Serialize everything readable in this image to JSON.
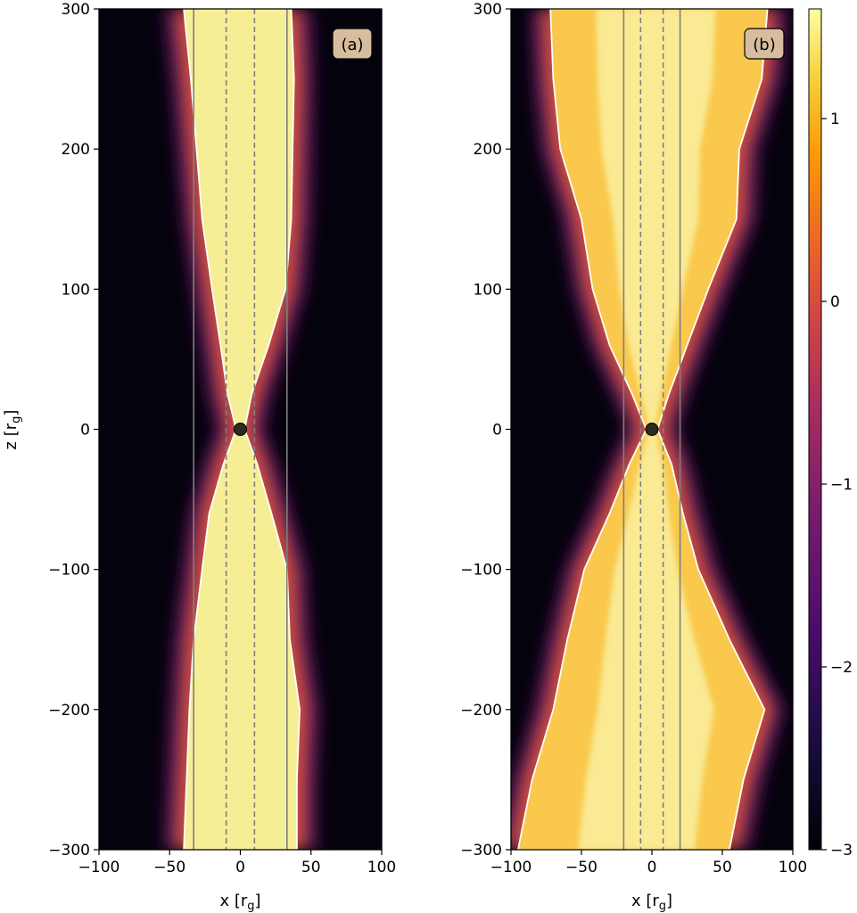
{
  "chart_data": [
    {
      "type": "heatmap",
      "panel_label": "(a)",
      "xlabel": "x [r_g]",
      "ylabel": "z [r_g]",
      "xlim": [
        -100,
        100
      ],
      "ylim": [
        -300,
        300
      ],
      "x_ticks": [
        -100,
        -50,
        0,
        50,
        100
      ],
      "y_ticks": [
        -300,
        -200,
        -100,
        0,
        100,
        200,
        300
      ],
      "x_tick_labels": [
        "−100",
        "−50",
        "0",
        "50",
        "100"
      ],
      "y_tick_labels": [
        "−300",
        "−200",
        "−100",
        "0",
        "100",
        "200",
        "300"
      ],
      "black_hole": {
        "x": 0,
        "z": 0
      },
      "solid_vertical_lines_x": [
        -33,
        33
      ],
      "dashed_vertical_lines_x": [
        -10,
        10
      ],
      "contour_boundary": [
        {
          "z": 300,
          "x_left": -40,
          "x_right": 36
        },
        {
          "z": 250,
          "x_left": -35,
          "x_right": 38
        },
        {
          "z": 200,
          "x_left": -31,
          "x_right": 37
        },
        {
          "z": 150,
          "x_left": -27,
          "x_right": 36
        },
        {
          "z": 100,
          "x_left": -20,
          "x_right": 32
        },
        {
          "z": 60,
          "x_left": -14,
          "x_right": 20
        },
        {
          "z": 25,
          "x_left": -9,
          "x_right": 8
        },
        {
          "z": 0,
          "x_left": -3,
          "x_right": 3
        },
        {
          "z": -25,
          "x_left": -12,
          "x_right": 12
        },
        {
          "z": -60,
          "x_left": -22,
          "x_right": 22
        },
        {
          "z": -100,
          "x_left": -27,
          "x_right": 33
        },
        {
          "z": -150,
          "x_left": -33,
          "x_right": 35
        },
        {
          "z": -200,
          "x_left": -36,
          "x_right": 42
        },
        {
          "z": -250,
          "x_left": -38,
          "x_right": 40
        },
        {
          "z": -300,
          "x_left": -40,
          "x_right": 40
        }
      ]
    },
    {
      "type": "heatmap",
      "panel_label": "(b)",
      "xlabel": "x [r_g]",
      "ylabel": "",
      "xlim": [
        -100,
        100
      ],
      "ylim": [
        -300,
        300
      ],
      "x_ticks": [
        -100,
        -50,
        0,
        50,
        100
      ],
      "y_ticks": [
        -300,
        -200,
        -100,
        0,
        100,
        200,
        300
      ],
      "x_tick_labels": [
        "−100",
        "−50",
        "0",
        "50",
        "100"
      ],
      "y_tick_labels": [
        "−300",
        "−200",
        "−100",
        "0",
        "100",
        "200",
        "300"
      ],
      "black_hole": {
        "x": 0,
        "z": 0
      },
      "solid_vertical_lines_x": [
        -20,
        20
      ],
      "dashed_vertical_lines_x": [
        -8,
        8
      ],
      "contour_boundary": [
        {
          "z": 300,
          "x_left": -72,
          "x_right": 82
        },
        {
          "z": 250,
          "x_left": -70,
          "x_right": 78
        },
        {
          "z": 200,
          "x_left": -65,
          "x_right": 62
        },
        {
          "z": 150,
          "x_left": -50,
          "x_right": 60
        },
        {
          "z": 100,
          "x_left": -42,
          "x_right": 40
        },
        {
          "z": 60,
          "x_left": -30,
          "x_right": 25
        },
        {
          "z": 25,
          "x_left": -14,
          "x_right": 12
        },
        {
          "z": 0,
          "x_left": -4,
          "x_right": 4
        },
        {
          "z": -25,
          "x_left": -16,
          "x_right": 14
        },
        {
          "z": -60,
          "x_left": -30,
          "x_right": 22
        },
        {
          "z": -100,
          "x_left": -48,
          "x_right": 33
        },
        {
          "z": -150,
          "x_left": -60,
          "x_right": 55
        },
        {
          "z": -200,
          "x_left": -70,
          "x_right": 80
        },
        {
          "z": -250,
          "x_left": -85,
          "x_right": 65
        },
        {
          "z": -300,
          "x_left": -95,
          "x_right": 55
        }
      ]
    }
  ],
  "colorbar": {
    "range": [
      -3,
      1.6
    ],
    "ticks": [
      -3,
      -2,
      -1,
      0,
      1
    ],
    "tick_labels": [
      "−3",
      "−2",
      "−1",
      "0",
      "1"
    ],
    "colormap": "inferno"
  }
}
